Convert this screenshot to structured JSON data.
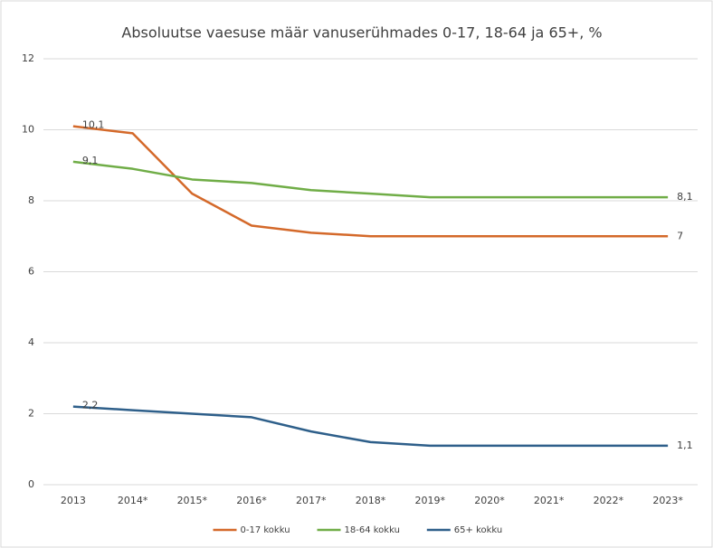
{
  "chart_data": {
    "type": "line",
    "title": "Absoluutse vaesuse määr vanuserühmades 0-17, 18-64 ja 65+, %",
    "categories": [
      "2013",
      "2014*",
      "2015*",
      "2016*",
      "2017*",
      "2018*",
      "2019*",
      "2020*",
      "2021*",
      "2022*",
      "2023*"
    ],
    "series": [
      {
        "name": "0-17 kokku",
        "color": "#d4692a",
        "values": [
          10.1,
          9.9,
          8.2,
          7.3,
          7.1,
          7.0,
          7.0,
          7.0,
          7.0,
          7.0,
          7.0
        ],
        "value_labels": [
          "10,1",
          null,
          null,
          null,
          null,
          null,
          null,
          null,
          null,
          null,
          "7"
        ]
      },
      {
        "name": "18-64 kokku",
        "color": "#70ad47",
        "values": [
          9.1,
          8.9,
          8.6,
          8.5,
          8.3,
          8.2,
          8.1,
          8.1,
          8.1,
          8.1,
          8.1
        ],
        "value_labels": [
          "9,1",
          null,
          null,
          null,
          null,
          null,
          null,
          null,
          null,
          null,
          "8,1"
        ]
      },
      {
        "name": "65+ kokku",
        "color": "#2e5f8a",
        "values": [
          2.2,
          2.1,
          2.0,
          1.9,
          1.5,
          1.2,
          1.1,
          1.1,
          1.1,
          1.1,
          1.1
        ],
        "value_labels": [
          "2,2",
          null,
          null,
          null,
          null,
          null,
          null,
          null,
          null,
          null,
          "1,1"
        ]
      }
    ],
    "ylim": [
      0,
      12
    ],
    "yticks": [
      0,
      2,
      4,
      6,
      8,
      10,
      12
    ],
    "grid": true,
    "legend": "bottom"
  }
}
